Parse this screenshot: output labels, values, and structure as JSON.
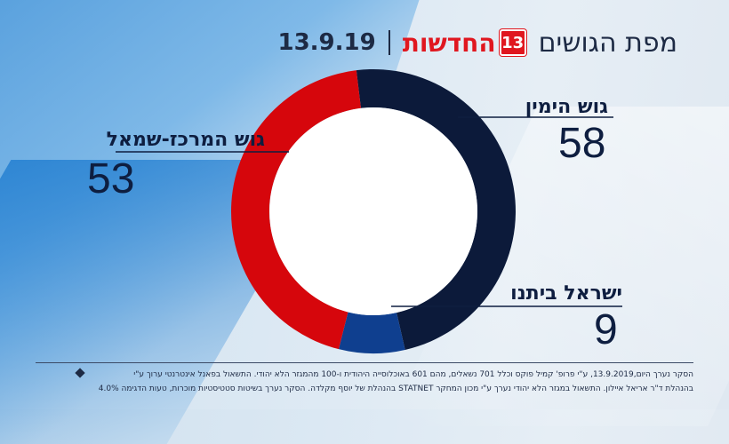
{
  "header": {
    "map_title": "מפת הגושים",
    "logo_text": "החדשות",
    "logo_number": "13",
    "date": "13.9.19"
  },
  "chart_data": {
    "type": "pie",
    "series": [
      {
        "name": "גוש הימין",
        "value": 58,
        "color": "#0c1a3a"
      },
      {
        "name": "ישראל ביתנו",
        "value": 9,
        "color": "#0f3f8f"
      },
      {
        "name": "גוש המרכז-שמאל",
        "value": 53,
        "color": "#d6060c"
      }
    ]
  },
  "labels": {
    "right_bloc": {
      "name": "גוש הימין",
      "value": "58"
    },
    "yisrael_beiteinu": {
      "name": "ישראל ביתנו",
      "value": "9"
    },
    "center_left": {
      "name": "גוש המרכז-שמאל",
      "value": "53"
    }
  },
  "footnote": {
    "line1": "הסקר נערך היום,13.9.2019, ע\"י פרופ' קמיל פוקס וכלל 701 נשאלים, מהם 601 באוכלוסייה היהודית ו-100 מהמגזר הלא יהודי.  התשאול בפאנל אינטרנטי ערוך ע\"י",
    "line2": "בהנהלת ד\"ר אריאל איילון. התשאול במגזר הלא יהודי נערך ע\"י מכון המחקר STATNET בהנהלת של יוסף מקלדה. הסקר נערך בשיטות סטטיסטיות מוכרות, טעות הדגימה 4.0%"
  }
}
